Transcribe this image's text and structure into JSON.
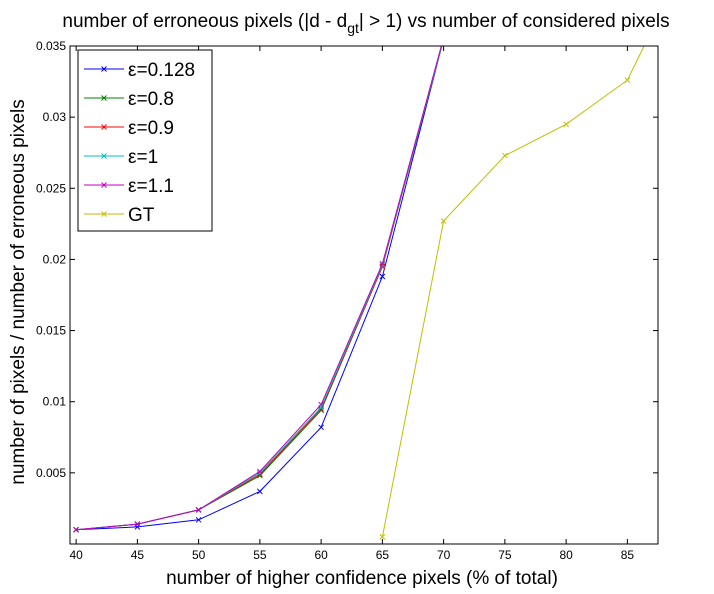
{
  "chart_data": {
    "type": "line",
    "title": {
      "before": "number of erroneous pixels (|d - d",
      "subscript": "gt",
      "after": "| > 1) vs number of considered pixels"
    },
    "xlabel": "number of higher confidence pixels (% of total)",
    "ylabel": "number of pixels / number of erroneous pixels",
    "xlim": [
      39.5,
      87.5
    ],
    "ylim": [
      0,
      0.035
    ],
    "xticks": [
      40,
      45,
      50,
      55,
      60,
      65,
      70,
      75,
      80,
      85
    ],
    "xtick_labels": [
      "40",
      "45",
      "50",
      "55",
      "60",
      "65",
      "70",
      "75",
      "80",
      "85"
    ],
    "yticks": [
      0.005,
      0.01,
      0.015,
      0.02,
      0.025,
      0.03,
      0.035
    ],
    "ytick_labels": [
      "0.005",
      "0.01",
      "0.015",
      "0.02",
      "0.025",
      "0.03",
      "0.035"
    ],
    "legend_position": "top-left",
    "grid": false,
    "series": [
      {
        "name": "ε=0.128",
        "color": "#0000ff",
        "marker": "x",
        "x": [
          40,
          45,
          50,
          55,
          60,
          65,
          70
        ],
        "y": [
          0.001,
          0.0012,
          0.0017,
          0.0037,
          0.0082,
          0.0188,
          0.0355
        ]
      },
      {
        "name": "ε=0.8",
        "color": "#008000",
        "marker": "x",
        "x": [
          40,
          45,
          50,
          55,
          60,
          65,
          70
        ],
        "y": [
          0.001,
          0.0014,
          0.0024,
          0.0048,
          0.0094,
          0.0195,
          0.0355
        ]
      },
      {
        "name": "ε=0.9",
        "color": "#ff0000",
        "marker": "x",
        "x": [
          40,
          45,
          50,
          55,
          60,
          65,
          70
        ],
        "y": [
          0.001,
          0.0014,
          0.0024,
          0.0049,
          0.0095,
          0.0195,
          0.0355
        ]
      },
      {
        "name": "ε=1",
        "color": "#00bfbf",
        "marker": "x",
        "x": [
          40,
          45,
          50,
          55,
          60,
          65,
          70
        ],
        "y": [
          0.001,
          0.0014,
          0.0024,
          0.005,
          0.0096,
          0.0196,
          0.0355
        ]
      },
      {
        "name": "ε=1.1",
        "color": "#bf00bf",
        "marker": "x",
        "x": [
          40,
          45,
          50,
          55,
          60,
          65,
          70
        ],
        "y": [
          0.001,
          0.0014,
          0.0024,
          0.0051,
          0.0098,
          0.0197,
          0.0356
        ]
      },
      {
        "name": "GT",
        "color": "#bfbf00",
        "marker": "x",
        "x": [
          65,
          70,
          75,
          80,
          85,
          87.5
        ],
        "y": [
          0.0005,
          0.0227,
          0.0273,
          0.0295,
          0.0326,
          0.037
        ]
      }
    ]
  }
}
